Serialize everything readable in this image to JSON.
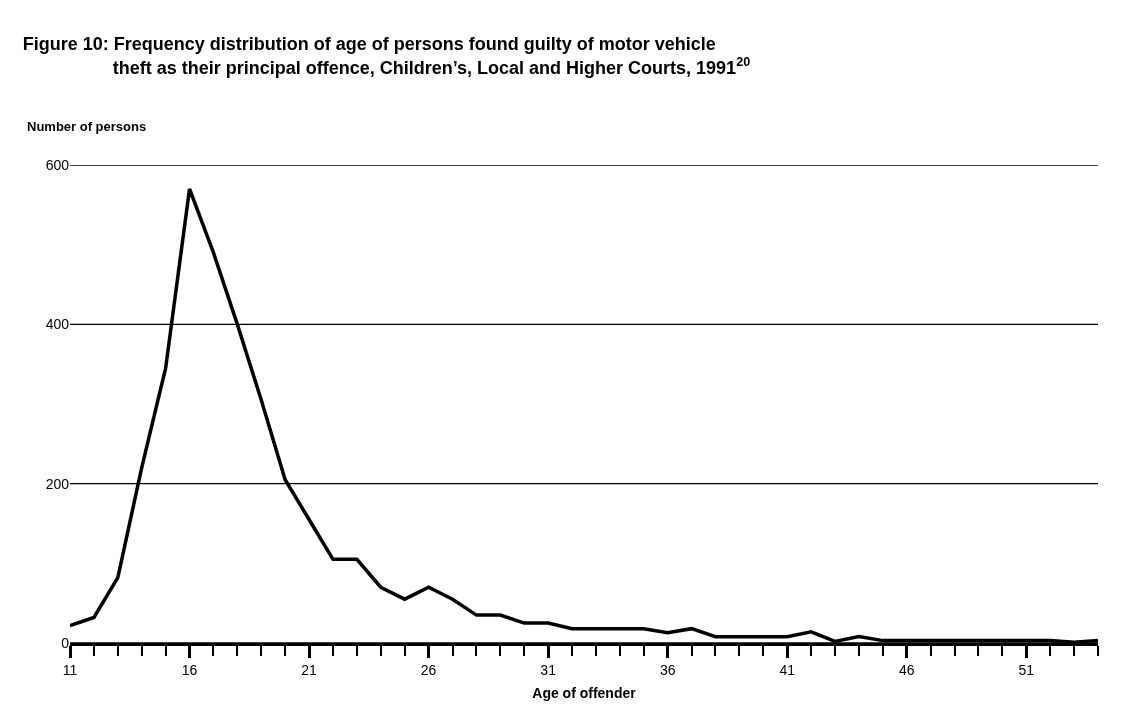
{
  "chart_data": {
    "type": "line",
    "title": "Figure 10: Frequency distribution of age of persons found guilty of motor vehicle theft as their principal offence, Children’s, Local and Higher Courts, 1991$^{20}$",
    "xlabel": "Age of offender",
    "ylabel": "Number of persons",
    "x": [
      11,
      12,
      13,
      14,
      15,
      16,
      17,
      18,
      19,
      20,
      21,
      22,
      23,
      24,
      25,
      26,
      27,
      28,
      29,
      30,
      31,
      32,
      33,
      34,
      35,
      36,
      37,
      38,
      39,
      40,
      41,
      42,
      43,
      44,
      45,
      46,
      47,
      48,
      49,
      50,
      51,
      52,
      53,
      54
    ],
    "series": [
      {
        "color": "#000000",
        "values": [
          22,
          32,
          82,
          220,
          345,
          570,
          490,
          400,
          305,
          205,
          155,
          105,
          105,
          70,
          55,
          70,
          55,
          35,
          35,
          25,
          25,
          18,
          18,
          18,
          18,
          13,
          18,
          8,
          8,
          8,
          8,
          14,
          2,
          8,
          3,
          3,
          3,
          3,
          3,
          3,
          3,
          3,
          1,
          3
        ]
      }
    ],
    "xlim": [
      11,
      54
    ],
    "xticks": [
      11,
      16,
      21,
      26,
      31,
      36,
      41,
      46,
      51
    ],
    "ylim": [
      0,
      600
    ],
    "yticks": [
      0,
      200,
      400,
      600
    ],
    "grid": "y",
    "marker": "none",
    "line_style": "solid"
  }
}
